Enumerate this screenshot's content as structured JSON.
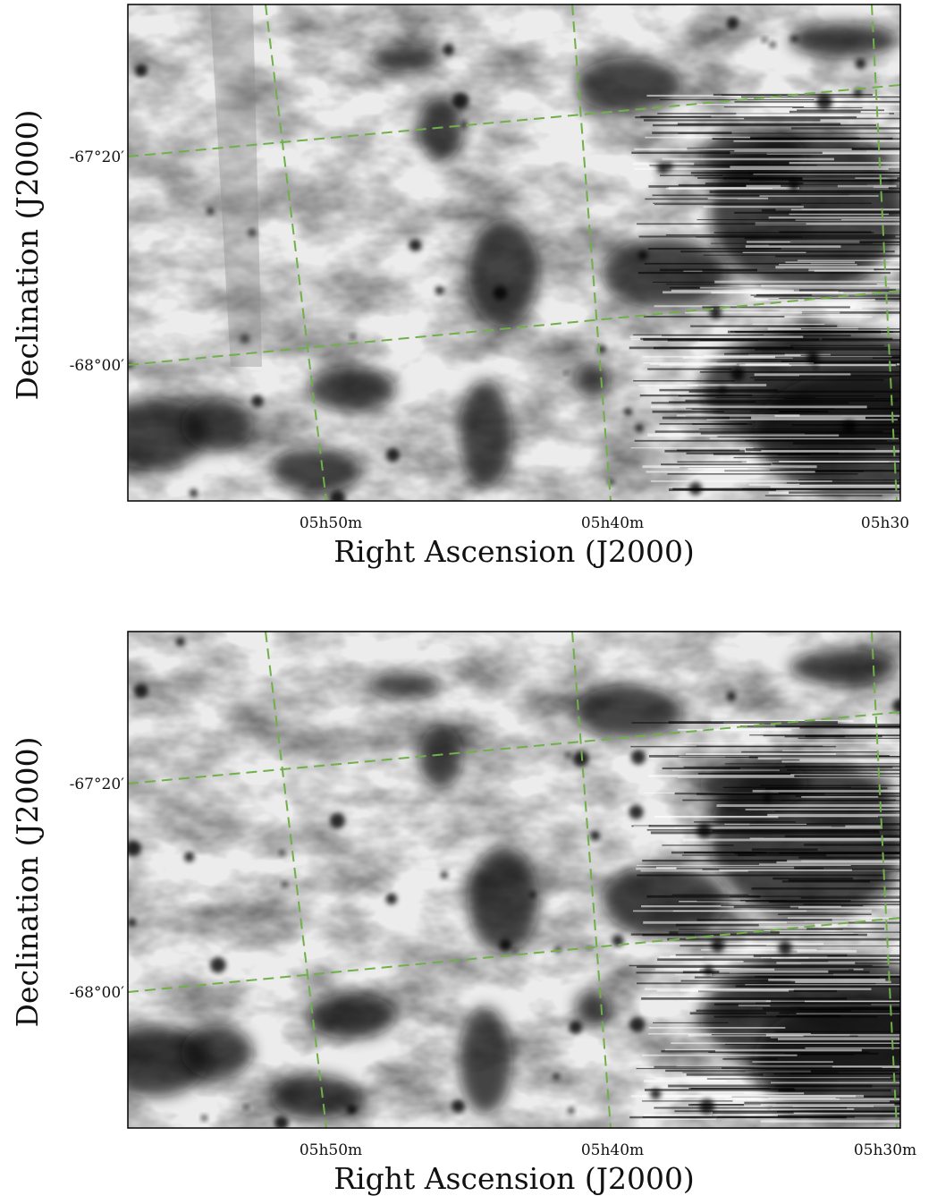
{
  "panels": [
    {
      "y_label": "Declination (J2000)",
      "x_label": "Right Ascension (J2000)",
      "y_ticks": [
        "-67°20′",
        "-68°00′"
      ],
      "x_ticks": [
        "05h50m",
        "05h40m",
        "05h30"
      ]
    },
    {
      "y_label": "Declination (J2000)",
      "x_label": "Right Ascension (J2000)",
      "y_ticks": [
        "-67°20′",
        "-68°00′"
      ],
      "x_ticks": [
        "05h50m",
        "05h40m",
        "05h30m"
      ]
    }
  ]
}
